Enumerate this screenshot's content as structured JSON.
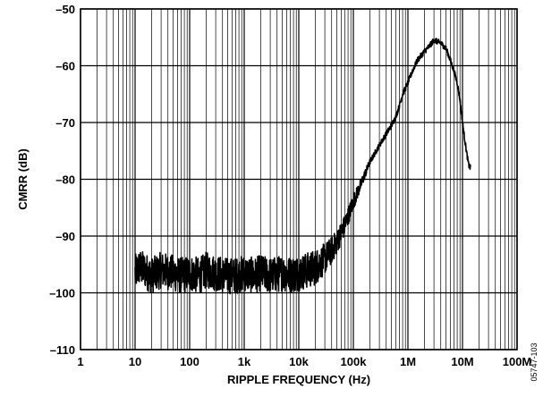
{
  "figure_id": "05747-103",
  "chart_data": {
    "type": "line",
    "xlabel": "RIPPLE FREQUENCY (Hz)",
    "ylabel": "CMRR (dB)",
    "x_scale": "log",
    "xlim": [
      1,
      100000000
    ],
    "ylim": [
      -110,
      -50
    ],
    "grid": true,
    "x_ticks": [
      {
        "value": 1,
        "label": "1"
      },
      {
        "value": 10,
        "label": "10"
      },
      {
        "value": 100,
        "label": "100"
      },
      {
        "value": 1000,
        "label": "1k"
      },
      {
        "value": 10000,
        "label": "10k"
      },
      {
        "value": 100000,
        "label": "100k"
      },
      {
        "value": 1000000,
        "label": "1M"
      },
      {
        "value": 10000000,
        "label": "10M"
      },
      {
        "value": 100000000,
        "label": "100M"
      }
    ],
    "y_ticks": [
      {
        "value": -50,
        "label": "–50"
      },
      {
        "value": -60,
        "label": "–60"
      },
      {
        "value": -70,
        "label": "–70"
      },
      {
        "value": -80,
        "label": "–80"
      },
      {
        "value": -90,
        "label": "–90"
      },
      {
        "value": -100,
        "label": "–100"
      },
      {
        "value": -110,
        "label": "–110"
      }
    ],
    "series": [
      {
        "x": [
          10,
          12,
          15,
          20,
          30,
          50,
          70,
          100,
          150,
          200,
          300,
          500,
          700,
          1000,
          1500,
          2000,
          3000,
          5000,
          7000,
          10000,
          15000,
          20000,
          30000,
          40000,
          50000,
          70000,
          100000,
          150000,
          200000,
          300000,
          400000,
          500000,
          600000,
          700000,
          800000,
          900000,
          1000000,
          1200000,
          1500000,
          2000000,
          2500000,
          3000000,
          4000000,
          5000000,
          6000000,
          7000000,
          8000000,
          9000000,
          10000000,
          11000000,
          12000000,
          13000000,
          14000000
        ],
        "y": [
          -96.5,
          -95.5,
          -96,
          -97,
          -96,
          -96.5,
          -97,
          -96.5,
          -97,
          -96,
          -96.5,
          -97,
          -97,
          -96.5,
          -97,
          -96.5,
          -97,
          -96.5,
          -96.8,
          -96.5,
          -96,
          -95.5,
          -94,
          -92.5,
          -91,
          -88,
          -84,
          -80,
          -77,
          -74,
          -72,
          -70.5,
          -69,
          -67,
          -65,
          -64,
          -63,
          -61,
          -59,
          -57.5,
          -56.5,
          -55.5,
          -56,
          -57,
          -59,
          -61,
          -63,
          -66,
          -70,
          -73,
          -75.5,
          -77.5,
          -78
        ]
      }
    ]
  }
}
